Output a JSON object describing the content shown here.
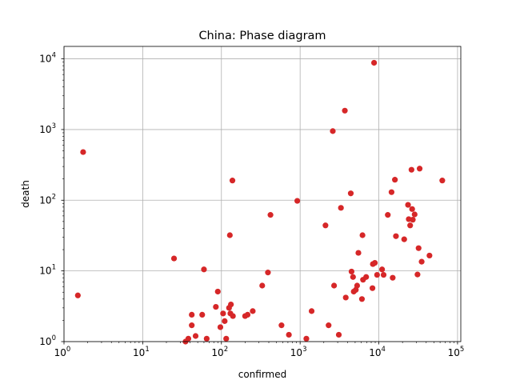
{
  "chart_data": {
    "type": "scatter",
    "title": "China: Phase diagram",
    "xlabel": "confirmed",
    "ylabel": "death",
    "xscale": "log",
    "yscale": "log",
    "xlim": [
      1,
      110000
    ],
    "ylim": [
      1,
      15000
    ],
    "x_ticks": [
      {
        "value": 1,
        "base": "10",
        "exp": "0"
      },
      {
        "value": 10,
        "base": "10",
        "exp": "1"
      },
      {
        "value": 100,
        "base": "10",
        "exp": "2"
      },
      {
        "value": 1000,
        "base": "10",
        "exp": "3"
      },
      {
        "value": 10000,
        "base": "10",
        "exp": "4"
      },
      {
        "value": 100000,
        "base": "10",
        "exp": "5"
      }
    ],
    "y_ticks": [
      {
        "value": 1,
        "base": "10",
        "exp": "0"
      },
      {
        "value": 10,
        "base": "10",
        "exp": "1"
      },
      {
        "value": 100,
        "base": "10",
        "exp": "2"
      },
      {
        "value": 1000,
        "base": "10",
        "exp": "3"
      },
      {
        "value": 10000,
        "base": "10",
        "exp": "4"
      }
    ],
    "grid": true,
    "marker_color": "#d62728",
    "points": [
      {
        "x": 1.5,
        "y": 4.5
      },
      {
        "x": 1.75,
        "y": 480
      },
      {
        "x": 25,
        "y": 15
      },
      {
        "x": 35,
        "y": 1.0
      },
      {
        "x": 38,
        "y": 1.1
      },
      {
        "x": 42,
        "y": 2.4
      },
      {
        "x": 42,
        "y": 1.7
      },
      {
        "x": 47,
        "y": 1.2
      },
      {
        "x": 57,
        "y": 2.4
      },
      {
        "x": 60,
        "y": 10.5
      },
      {
        "x": 65,
        "y": 1.1
      },
      {
        "x": 85,
        "y": 3.1
      },
      {
        "x": 90,
        "y": 5.1
      },
      {
        "x": 97,
        "y": 1.6
      },
      {
        "x": 105,
        "y": 2.5
      },
      {
        "x": 110,
        "y": 1.95
      },
      {
        "x": 115,
        "y": 1.1
      },
      {
        "x": 125,
        "y": 3.0
      },
      {
        "x": 128,
        "y": 32
      },
      {
        "x": 130,
        "y": 2.5
      },
      {
        "x": 132,
        "y": 3.35
      },
      {
        "x": 138,
        "y": 190
      },
      {
        "x": 140,
        "y": 2.3
      },
      {
        "x": 200,
        "y": 2.3
      },
      {
        "x": 215,
        "y": 2.4
      },
      {
        "x": 250,
        "y": 2.7
      },
      {
        "x": 330,
        "y": 6.2
      },
      {
        "x": 390,
        "y": 9.5
      },
      {
        "x": 420,
        "y": 62
      },
      {
        "x": 580,
        "y": 1.7
      },
      {
        "x": 720,
        "y": 1.25
      },
      {
        "x": 920,
        "y": 98
      },
      {
        "x": 1200,
        "y": 1.1
      },
      {
        "x": 1400,
        "y": 2.7
      },
      {
        "x": 2100,
        "y": 44
      },
      {
        "x": 2300,
        "y": 1.7
      },
      {
        "x": 2600,
        "y": 950
      },
      {
        "x": 2700,
        "y": 6.2
      },
      {
        "x": 3100,
        "y": 1.25
      },
      {
        "x": 3300,
        "y": 78
      },
      {
        "x": 3700,
        "y": 1850
      },
      {
        "x": 3800,
        "y": 4.2
      },
      {
        "x": 4400,
        "y": 125
      },
      {
        "x": 4500,
        "y": 9.8
      },
      {
        "x": 4700,
        "y": 8.2
      },
      {
        "x": 4800,
        "y": 5.1
      },
      {
        "x": 5100,
        "y": 5.4
      },
      {
        "x": 5300,
        "y": 6.2
      },
      {
        "x": 5500,
        "y": 18
      },
      {
        "x": 6100,
        "y": 4.0
      },
      {
        "x": 6200,
        "y": 32
      },
      {
        "x": 6300,
        "y": 7.5
      },
      {
        "x": 6900,
        "y": 8.2
      },
      {
        "x": 8300,
        "y": 5.7
      },
      {
        "x": 8400,
        "y": 12.5
      },
      {
        "x": 8700,
        "y": 8800
      },
      {
        "x": 8900,
        "y": 13
      },
      {
        "x": 9500,
        "y": 8.8
      },
      {
        "x": 11000,
        "y": 10.5
      },
      {
        "x": 11500,
        "y": 8.8
      },
      {
        "x": 13000,
        "y": 62
      },
      {
        "x": 14500,
        "y": 130
      },
      {
        "x": 15000,
        "y": 8.0
      },
      {
        "x": 16000,
        "y": 195
      },
      {
        "x": 16500,
        "y": 31
      },
      {
        "x": 21000,
        "y": 28
      },
      {
        "x": 23500,
        "y": 86
      },
      {
        "x": 24000,
        "y": 54
      },
      {
        "x": 25000,
        "y": 44
      },
      {
        "x": 26000,
        "y": 270
      },
      {
        "x": 26500,
        "y": 75
      },
      {
        "x": 27000,
        "y": 53
      },
      {
        "x": 28500,
        "y": 63
      },
      {
        "x": 31000,
        "y": 8.9
      },
      {
        "x": 32000,
        "y": 21
      },
      {
        "x": 33000,
        "y": 280
      },
      {
        "x": 35000,
        "y": 13.5
      },
      {
        "x": 44000,
        "y": 16.5
      },
      {
        "x": 64000,
        "y": 190
      }
    ]
  }
}
